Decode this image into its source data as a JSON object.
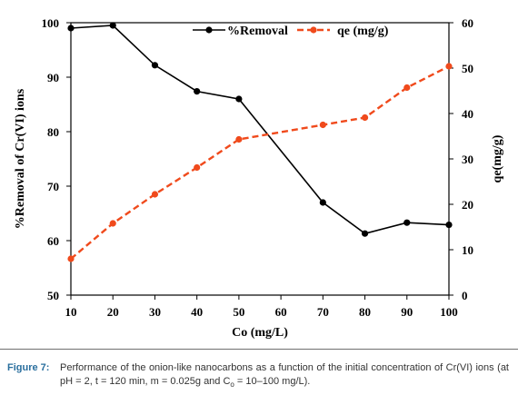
{
  "chart_data": {
    "type": "line",
    "x": [
      10,
      20,
      30,
      40,
      50,
      70,
      80,
      90,
      100
    ],
    "x_ticks": [
      "10",
      "20",
      "30",
      "40",
      "50",
      "60",
      "70",
      "80",
      "90",
      "100"
    ],
    "xlim": [
      10,
      100
    ],
    "xlabel": "Co (mg/L)",
    "ylabel_left": "%Removal of Cr(VI)  ions",
    "ylabel_right": "qe(mg/g)",
    "ylim_left": [
      50,
      100
    ],
    "ylim_right": [
      0,
      60
    ],
    "y_ticks_left": [
      "50",
      "60",
      "70",
      "80",
      "90",
      "100"
    ],
    "y_ticks_right": [
      "0",
      "10",
      "20",
      "30",
      "40",
      "50",
      "60"
    ],
    "grid": false,
    "legend_position": "top",
    "series": [
      {
        "name": "%Removal",
        "axis": "left",
        "color": "#000000",
        "style": "solid",
        "marker": "circle",
        "values": [
          99.0,
          99.5,
          92.2,
          87.4,
          86.0,
          67.0,
          61.3,
          63.3,
          62.9
        ]
      },
      {
        "name": "qe (mg/g)",
        "axis": "right",
        "color": "#f04a1c",
        "style": "dashed",
        "marker": "circle",
        "values": [
          8.0,
          15.8,
          22.2,
          28.1,
          34.3,
          37.5,
          39.1,
          45.7,
          50.4
        ]
      }
    ]
  },
  "caption": {
    "label": "Figure 7:",
    "text": "Performance of the onion-like nanocarbons as a function of the initial concentration of Cr(VI) ions (at pH = 2, t = 120 min, m = 0.025g and C",
    "subscript": "o",
    "text_end": " = 10–100 mg/L)."
  }
}
